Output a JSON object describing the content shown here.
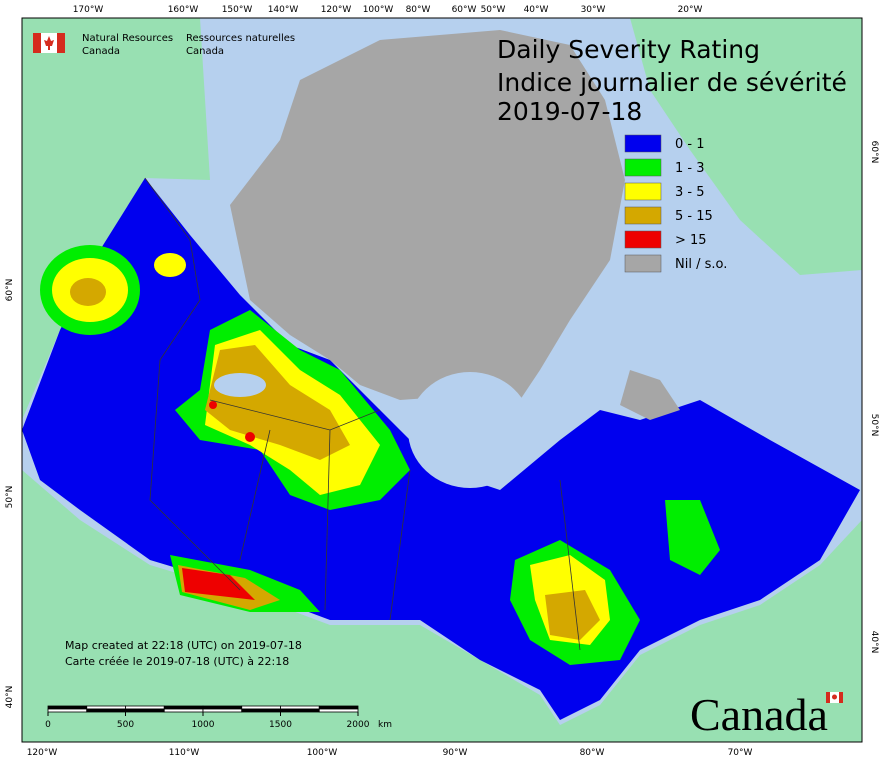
{
  "header": {
    "agency_en": [
      "Natural Resources",
      "Canada"
    ],
    "agency_fr": [
      "Ressources naturelles",
      "Canada"
    ]
  },
  "title": [
    "Daily Severity Rating",
    "Indice journalier de sévérité",
    "2019-07-18"
  ],
  "legend": [
    {
      "label": "0 - 1",
      "color": "#0000ee"
    },
    {
      "label": "1 - 3",
      "color": "#00ee00"
    },
    {
      "label": "3 - 5",
      "color": "#ffff00"
    },
    {
      "label": "5 - 15",
      "color": "#d4a800"
    },
    {
      "label": "> 15",
      "color": "#ee0000"
    },
    {
      "label": "Nil / s.o.",
      "color": "#a6a6a6"
    }
  ],
  "graticule": {
    "top": [
      "170°W",
      "160°W",
      "150°W",
      "140°W",
      "120°W",
      "100°W",
      "80°W",
      "60°W",
      "50°W",
      "40°W",
      "30°W",
      "20°W"
    ],
    "bottom": [
      "120°W",
      "110°W",
      "100°W",
      "90°W",
      "80°W",
      "70°W"
    ],
    "left": [
      "60°N",
      "50°N",
      "40°N"
    ],
    "right": [
      "60°N",
      "50°N",
      "40°N"
    ]
  },
  "notes": [
    "Map created at 22:18 (UTC) on 2019-07-18",
    "Carte créée le 2019-07-18 (UTC) à 22:18"
  ],
  "scale_bar": {
    "ticks": [
      0,
      500,
      1000,
      1500,
      2000
    ],
    "unit": "km"
  },
  "wordmark": "Canada"
}
